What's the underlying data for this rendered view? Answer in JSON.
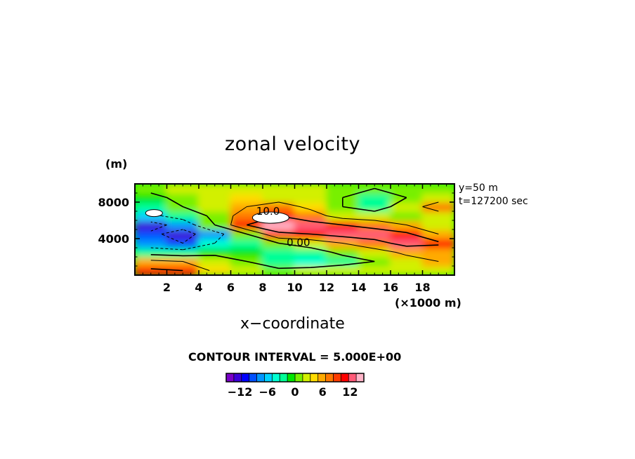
{
  "chart_data": {
    "type": "heatmap",
    "title": "zonal velocity",
    "xlabel": "x−coordinate",
    "x_unit": "(×1000 m)",
    "y_unit": "(m)",
    "annotations": [
      "y=50 m",
      "t=127200 sec"
    ],
    "contour_interval": "CONTOUR INTERVAL = 5.000E+00",
    "contour_labels": [
      "10.0",
      "0.00"
    ],
    "xlim": [
      0,
      20
    ],
    "ylim": [
      0,
      10000
    ],
    "xticks": [
      2,
      4,
      6,
      8,
      10,
      12,
      14,
      16,
      18
    ],
    "xtick_labels": [
      "2",
      "4",
      "6",
      "8",
      "10",
      "12",
      "14",
      "16",
      "18"
    ],
    "yticks": [
      4000,
      8000
    ],
    "ytick_labels": [
      "4000",
      "8000"
    ],
    "value_range": [
      -15,
      15
    ],
    "colorbar": {
      "ticks": [
        -12,
        -6,
        0,
        6,
        12
      ],
      "tick_labels": [
        "−12",
        "−6",
        "0",
        "6",
        "12"
      ],
      "colors": [
        "#7a00c8",
        "#3c00d8",
        "#0000ff",
        "#0050ff",
        "#0096ff",
        "#00d2ff",
        "#00ffd2",
        "#00ff96",
        "#00e600",
        "#78f000",
        "#d2f000",
        "#ffdc00",
        "#ffaa00",
        "#ff7800",
        "#ff3c00",
        "#ff0000",
        "#ff5a78",
        "#ffb4c8"
      ]
    },
    "grid": false,
    "data": {
      "x": [
        1,
        3,
        5,
        7,
        9,
        11,
        13,
        15,
        17,
        19
      ],
      "y": [
        500,
        1500,
        2500,
        3500,
        4500,
        5500,
        6500,
        7500,
        8500,
        9500
      ],
      "z": [
        [
          11,
          10,
          4,
          2,
          1,
          2,
          3,
          2,
          2,
          2
        ],
        [
          6,
          5,
          2,
          0,
          -3,
          -4,
          -2,
          0,
          3,
          5
        ],
        [
          -2,
          -3,
          -1,
          -1,
          -2,
          -2,
          1,
          3,
          6,
          6
        ],
        [
          -8,
          -10,
          -5,
          -2,
          0,
          2,
          5,
          8,
          12,
          11
        ],
        [
          -9,
          -12,
          -7,
          0,
          9,
          10,
          12,
          13,
          11,
          5
        ],
        [
          -12,
          -8,
          0,
          10,
          14,
          12,
          10,
          8,
          5,
          2
        ],
        [
          -6,
          -3,
          1,
          8,
          10,
          7,
          3,
          2,
          1,
          2
        ],
        [
          -2,
          0,
          3,
          5,
          7,
          4,
          0,
          -2,
          2,
          8
        ],
        [
          -1,
          1,
          3,
          4,
          3,
          2,
          0,
          -3,
          0,
          2
        ],
        [
          1,
          2,
          2,
          3,
          2,
          2,
          1,
          0,
          1,
          1
        ]
      ]
    }
  }
}
